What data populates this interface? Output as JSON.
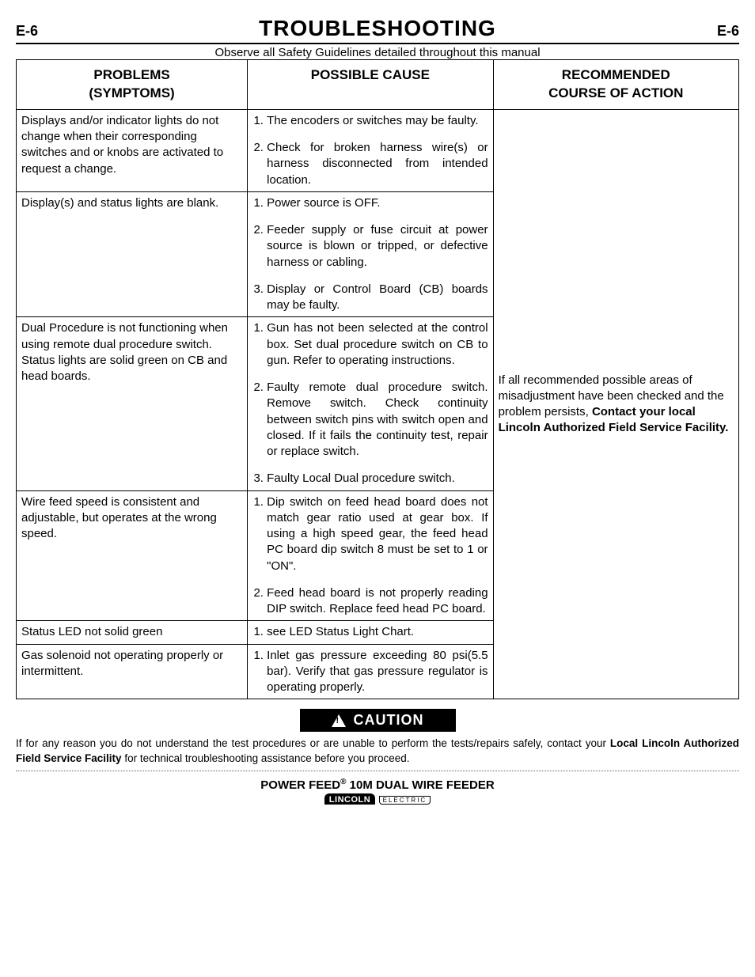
{
  "header": {
    "page_left": "E-6",
    "title": "TROUBLESHOOTING",
    "page_right": "E-6",
    "safety_note": "Observe all Safety Guidelines detailed throughout this manual"
  },
  "table": {
    "headers": {
      "problems_line1": "PROBLEMS",
      "problems_line2": "(SYMPTOMS)",
      "cause": "POSSIBLE  CAUSE",
      "action_line1": "RECOMMENDED",
      "action_line2": "COURSE OF ACTION"
    },
    "rows": [
      {
        "problem": "Displays and/or indicator lights do not change when their corresponding switches and or knobs are activated to request a change.",
        "causes": [
          "The encoders or switches may be faulty.",
          "Check for broken harness wire(s) or harness disconnected from intended location."
        ]
      },
      {
        "problem": "Display(s) and status lights are blank.",
        "causes": [
          "Power source is OFF.",
          "Feeder supply or fuse circuit at power source is blown or tripped, or defective harness or cabling.",
          "Display or Control Board (CB) boards may be faulty."
        ]
      },
      {
        "problem": "Dual Procedure is not functioning when using remote dual procedure switch. Status lights are solid green on CB and head boards.",
        "causes": [
          "Gun has not been selected at the control box. Set dual procedure switch on CB to gun. Refer to operating instructions.",
          "Faulty remote dual procedure switch. Remove switch. Check continuity between switch pins with switch open and closed. If it fails the continuity test, repair or replace switch.",
          "Faulty Local Dual procedure switch."
        ]
      },
      {
        "problem": "Wire feed speed is consistent and adjustable, but operates at the wrong speed.",
        "causes": [
          "Dip switch on feed head board does not match gear ratio used at gear box. If using a high speed gear, the feed head PC board dip switch 8 must be set to 1 or \"ON\".",
          "Feed head board is not properly reading DIP switch. Replace feed head PC board."
        ]
      },
      {
        "problem": "Status LED not solid green",
        "causes": [
          "see LED Status Light Chart."
        ]
      },
      {
        "problem": "Gas solenoid not operating properly or intermittent.",
        "causes": [
          "Inlet gas pressure exceeding 80 psi(5.5 bar). Verify that gas pressure regulator is operating properly."
        ]
      }
    ],
    "action_pre": "If all recommended possible areas of misadjustment have been checked and the problem persists, ",
    "action_bold1": "Contact your local Lincoln Authorized Field Service Facility."
  },
  "caution": {
    "label": "CAUTION",
    "text_pre": "If for any reason you do not understand the test procedures or are unable to perform the tests/repairs safely, contact your ",
    "text_bold": "Local  Lincoln Authorized Field Service Facility",
    "text_post": " for technical troubleshooting assistance before you proceed."
  },
  "footer": {
    "product_pre": "POWER FEED",
    "product_post": " 10M DUAL WIRE FEEDER",
    "logo_top": "LINCOLN",
    "logo_sub": "ELECTRIC"
  }
}
